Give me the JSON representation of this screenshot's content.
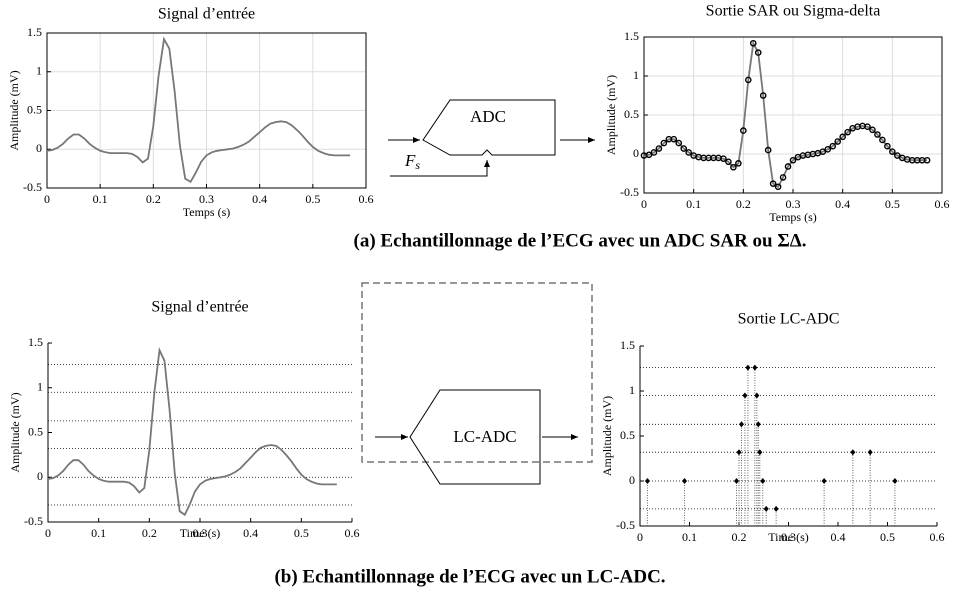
{
  "chart_data": [
    {
      "type": "line",
      "title": "Signal d’entrée",
      "xlabel": "Temps (s)",
      "ylabel": "Amplitude (mV)",
      "color": "#777777",
      "grid": true,
      "frame": true,
      "xlim": [
        0,
        0.6
      ],
      "xticks": [
        0,
        0.1,
        0.2,
        0.3,
        0.4,
        0.5,
        0.6
      ],
      "ylim": [
        -0.5,
        1.5
      ],
      "yticks": [
        -0.5,
        0,
        0.5,
        1,
        1.5
      ],
      "x": [
        0,
        0.01,
        0.02,
        0.03,
        0.04,
        0.05,
        0.06,
        0.07,
        0.08,
        0.09,
        0.1,
        0.11,
        0.12,
        0.13,
        0.14,
        0.15,
        0.16,
        0.17,
        0.18,
        0.19,
        0.2,
        0.21,
        0.22,
        0.23,
        0.24,
        0.25,
        0.26,
        0.27,
        0.28,
        0.29,
        0.3,
        0.31,
        0.32,
        0.33,
        0.34,
        0.35,
        0.36,
        0.37,
        0.38,
        0.39,
        0.4,
        0.41,
        0.42,
        0.43,
        0.44,
        0.45,
        0.46,
        0.47,
        0.48,
        0.49,
        0.5,
        0.51,
        0.52,
        0.53,
        0.54,
        0.55,
        0.56,
        0.57
      ],
      "y": [
        -0.02,
        -0.01,
        0.02,
        0.07,
        0.14,
        0.19,
        0.19,
        0.14,
        0.07,
        0.02,
        -0.02,
        -0.04,
        -0.05,
        -0.05,
        -0.05,
        -0.05,
        -0.06,
        -0.1,
        -0.17,
        -0.12,
        0.3,
        0.95,
        1.42,
        1.3,
        0.75,
        0.05,
        -0.38,
        -0.42,
        -0.3,
        -0.16,
        -0.08,
        -0.04,
        -0.02,
        -0.01,
        0,
        0.01,
        0.03,
        0.06,
        0.1,
        0.16,
        0.22,
        0.28,
        0.33,
        0.35,
        0.36,
        0.35,
        0.31,
        0.25,
        0.18,
        0.1,
        0.03,
        -0.02,
        -0.05,
        -0.07,
        -0.08,
        -0.08,
        -0.08,
        -0.08
      ]
    },
    {
      "type": "line",
      "title": "Sortie SAR ou Sigma-delta",
      "xlabel": "Temps (s)",
      "ylabel": "Amplitude (mV)",
      "color": "#777777",
      "marker_color": "#000000",
      "markers": true,
      "grid": true,
      "frame": true,
      "xlim": [
        0,
        0.6
      ],
      "xticks": [
        0,
        0.1,
        0.2,
        0.3,
        0.4,
        0.5,
        0.6
      ],
      "ylim": [
        -0.5,
        1.5
      ],
      "yticks": [
        -0.5,
        0,
        0.5,
        1,
        1.5
      ],
      "x": [
        0,
        0.01,
        0.02,
        0.03,
        0.04,
        0.05,
        0.06,
        0.07,
        0.08,
        0.09,
        0.1,
        0.11,
        0.12,
        0.13,
        0.14,
        0.15,
        0.16,
        0.17,
        0.18,
        0.19,
        0.2,
        0.21,
        0.22,
        0.23,
        0.24,
        0.25,
        0.26,
        0.27,
        0.28,
        0.29,
        0.3,
        0.31,
        0.32,
        0.33,
        0.34,
        0.35,
        0.36,
        0.37,
        0.38,
        0.39,
        0.4,
        0.41,
        0.42,
        0.43,
        0.44,
        0.45,
        0.46,
        0.47,
        0.48,
        0.49,
        0.5,
        0.51,
        0.52,
        0.53,
        0.54,
        0.55,
        0.56,
        0.57
      ],
      "y": [
        -0.02,
        -0.01,
        0.02,
        0.07,
        0.14,
        0.19,
        0.19,
        0.14,
        0.07,
        0.02,
        -0.02,
        -0.04,
        -0.05,
        -0.05,
        -0.05,
        -0.05,
        -0.06,
        -0.1,
        -0.17,
        -0.12,
        0.3,
        0.95,
        1.42,
        1.3,
        0.75,
        0.05,
        -0.38,
        -0.42,
        -0.3,
        -0.16,
        -0.08,
        -0.04,
        -0.02,
        -0.01,
        0,
        0.01,
        0.03,
        0.06,
        0.1,
        0.16,
        0.22,
        0.28,
        0.33,
        0.35,
        0.36,
        0.35,
        0.31,
        0.25,
        0.18,
        0.1,
        0.03,
        -0.02,
        -0.05,
        -0.07,
        -0.08,
        -0.08,
        -0.08,
        -0.08
      ]
    },
    {
      "type": "line",
      "title": "Signal d’entrée",
      "xlabel": "Time (s)",
      "ylabel": "Amplitude (mV)",
      "color": "#777777",
      "grid": false,
      "frame": false,
      "xlim": [
        0,
        0.6
      ],
      "xticks": [
        0,
        0.1,
        0.2,
        0.3,
        0.4,
        0.5,
        0.6
      ],
      "ylim": [
        -0.5,
        1.5
      ],
      "yticks": [
        -0.5,
        0,
        0.5,
        1,
        1.5
      ],
      "levels": [
        -0.31,
        0,
        0.32,
        0.63,
        0.95,
        1.26
      ],
      "x": [
        0,
        0.01,
        0.02,
        0.03,
        0.04,
        0.05,
        0.06,
        0.07,
        0.08,
        0.09,
        0.1,
        0.11,
        0.12,
        0.13,
        0.14,
        0.15,
        0.16,
        0.17,
        0.18,
        0.19,
        0.2,
        0.21,
        0.22,
        0.23,
        0.24,
        0.25,
        0.26,
        0.27,
        0.28,
        0.29,
        0.3,
        0.31,
        0.32,
        0.33,
        0.34,
        0.35,
        0.36,
        0.37,
        0.38,
        0.39,
        0.4,
        0.41,
        0.42,
        0.43,
        0.44,
        0.45,
        0.46,
        0.47,
        0.48,
        0.49,
        0.5,
        0.51,
        0.52,
        0.53,
        0.54,
        0.55,
        0.56,
        0.57
      ],
      "y": [
        -0.02,
        -0.01,
        0.02,
        0.07,
        0.14,
        0.19,
        0.19,
        0.14,
        0.07,
        0.02,
        -0.02,
        -0.04,
        -0.05,
        -0.05,
        -0.05,
        -0.05,
        -0.06,
        -0.1,
        -0.17,
        -0.12,
        0.3,
        0.95,
        1.42,
        1.3,
        0.75,
        0.05,
        -0.38,
        -0.42,
        -0.3,
        -0.16,
        -0.08,
        -0.04,
        -0.02,
        -0.01,
        0,
        0.01,
        0.03,
        0.06,
        0.1,
        0.16,
        0.22,
        0.28,
        0.33,
        0.35,
        0.36,
        0.35,
        0.31,
        0.25,
        0.18,
        0.1,
        0.03,
        -0.02,
        -0.05,
        -0.07,
        -0.08,
        -0.08,
        -0.08,
        -0.08
      ]
    },
    {
      "type": "stem",
      "title": "Sortie LC-ADC",
      "xlabel": "Time (s)",
      "ylabel": "Amplitude (mV)",
      "color": "#000000",
      "grid": false,
      "frame": false,
      "xlim": [
        0,
        0.6
      ],
      "xticks": [
        0,
        0.1,
        0.2,
        0.3,
        0.4,
        0.5,
        0.6
      ],
      "ylim": [
        -0.5,
        1.5
      ],
      "yticks": [
        -0.5,
        0,
        0.5,
        1,
        1.5
      ],
      "levels": [
        -0.31,
        0,
        0.32,
        0.63,
        0.95,
        1.26
      ],
      "x": [
        0.015,
        0.09,
        0.195,
        0.2,
        0.205,
        0.212,
        0.218,
        0.232,
        0.236,
        0.239,
        0.242,
        0.248,
        0.255,
        0.275,
        0.372,
        0.43,
        0.465,
        0.515
      ],
      "y": [
        0,
        0,
        0,
        0.32,
        0.63,
        0.95,
        1.26,
        1.26,
        0.95,
        0.63,
        0.32,
        0,
        -0.31,
        -0.31,
        0,
        0.32,
        0.32,
        0
      ]
    }
  ],
  "diagram": {
    "adc": "ADC",
    "fs": "F",
    "fs_sub": "s",
    "lcadc": "LC-ADC"
  },
  "captions": [
    "(a)  Echantillonnage de l’ECG avec un ADC SAR ou ΣΔ.",
    "(b)  Echantillonnage de l’ECG avec un LC-ADC."
  ]
}
